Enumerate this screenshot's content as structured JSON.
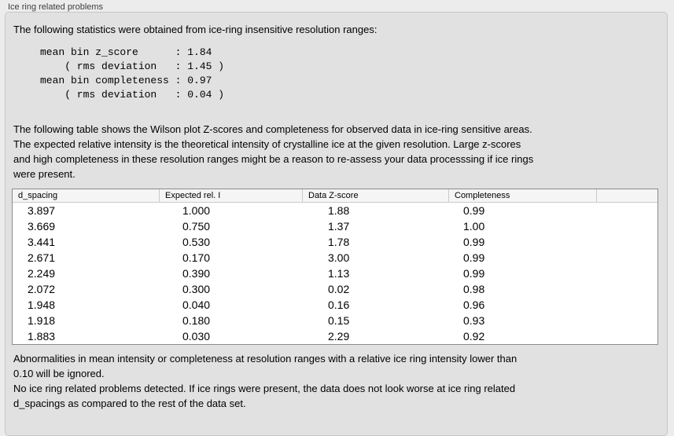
{
  "panel": {
    "title": "Ice ring related problems"
  },
  "texts": {
    "intro": "The following statistics were obtained from ice-ring insensitive resolution ranges:",
    "stats_block": "mean bin z_score      : 1.84\n    ( rms deviation   : 1.45 )\nmean bin completeness : 0.97\n    ( rms deviation   : 0.04 )",
    "description": "The following table shows the Wilson plot Z-scores and completeness for observed data in ice-ring sensitive areas.\nThe expected relative intensity is the theoretical intensity of crystalline ice at the given resolution. Large z-scores\nand high completeness in these resolution ranges might be a reason to re-assess your data processsing if ice rings\nwere present.",
    "note": "Abnormalities in mean intensity or completeness at resolution ranges with a relative ice ring intensity lower than\n0.10 will be ignored.",
    "conclusion": "No ice ring related problems detected. If ice rings were present, the data does not look worse at ice ring related\nd_spacings as compared to the rest of the data set."
  },
  "table": {
    "columns": [
      "d_spacing",
      "Expected rel. I",
      "Data Z-score",
      "Completeness",
      ""
    ],
    "rows": [
      [
        "3.897",
        "1.000",
        "1.88",
        "0.99"
      ],
      [
        "3.669",
        "0.750",
        "1.37",
        "1.00"
      ],
      [
        "3.441",
        "0.530",
        "1.78",
        "0.99"
      ],
      [
        "2.671",
        "0.170",
        "3.00",
        "0.99"
      ],
      [
        "2.249",
        "0.390",
        "1.13",
        "0.99"
      ],
      [
        "2.072",
        "0.300",
        "0.02",
        "0.98"
      ],
      [
        "1.948",
        "0.040",
        "0.16",
        "0.96"
      ],
      [
        "1.918",
        "0.180",
        "0.15",
        "0.93"
      ],
      [
        "1.883",
        "0.030",
        "2.29",
        "0.92"
      ]
    ]
  },
  "colors": {
    "page_bg": "#ececec",
    "panel_bg": "#e1e1e1",
    "table_border": "#8b8b8b",
    "header_bg": "#f5f5f5"
  }
}
